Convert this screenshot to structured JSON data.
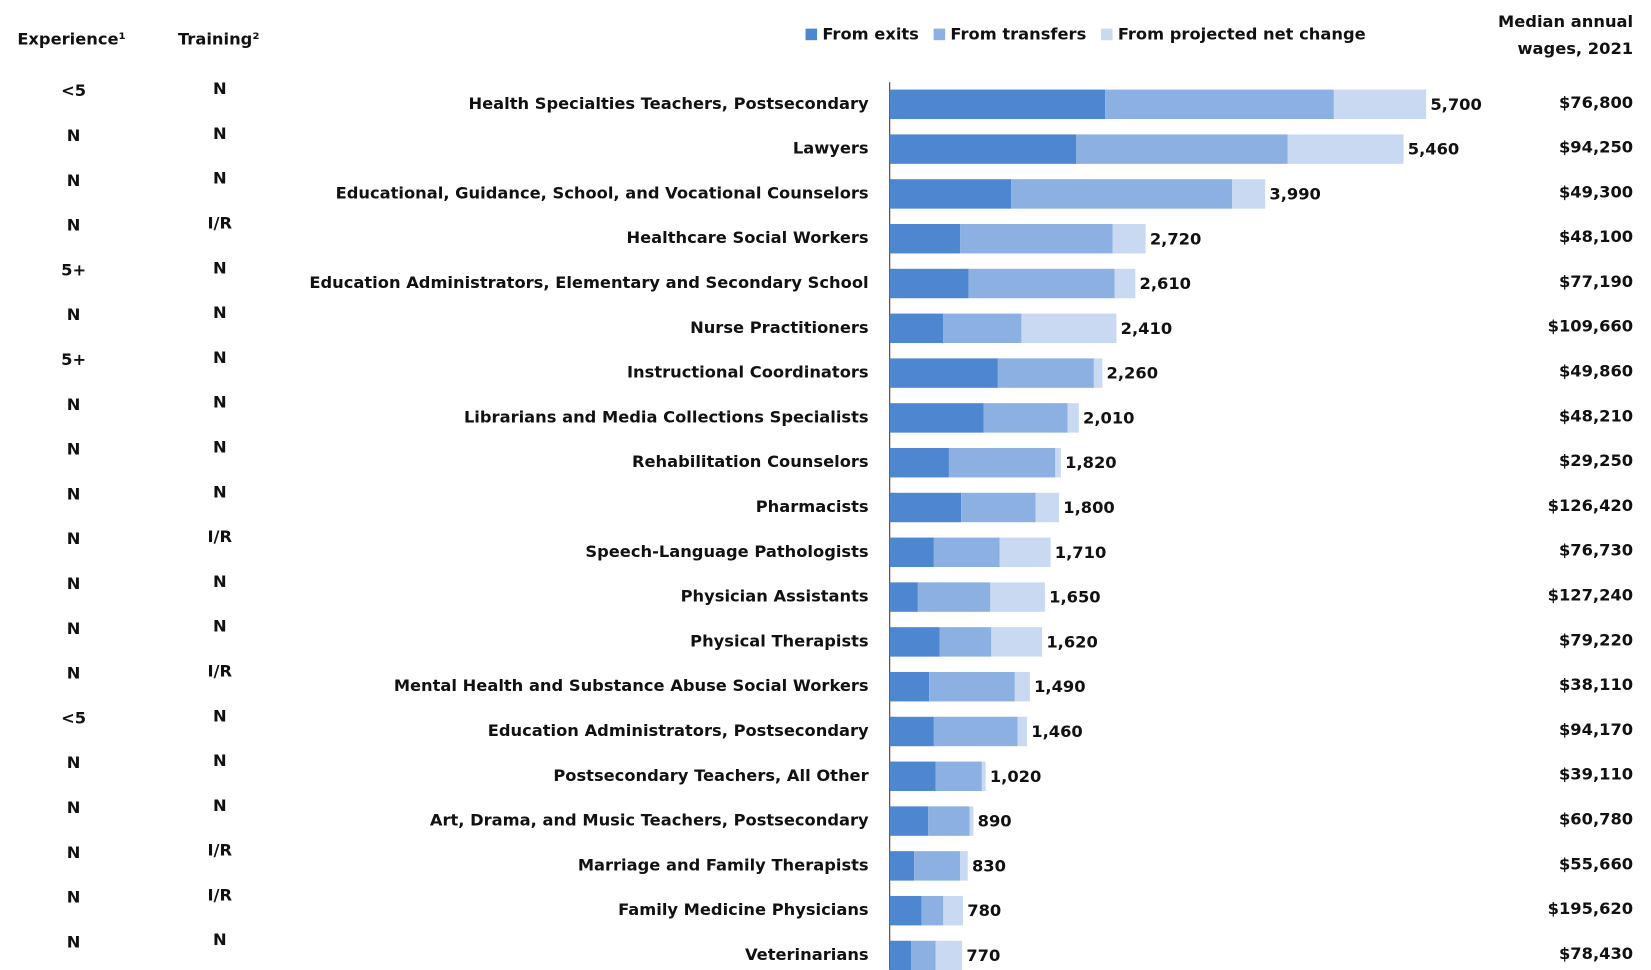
{
  "chart_data": {
    "type": "stacked-bar-horizontal",
    "experience_header": "Experience¹",
    "training_header": "Training²",
    "wage_header": [
      "Median annual",
      "wages, 2021"
    ],
    "categories": [
      "Health Specialties Teachers, Postsecondary",
      "Lawyers",
      "Educational, Guidance, School, and Vocational Counselors",
      "Healthcare Social Workers",
      "Education Administrators, Elementary and Secondary School",
      "Nurse Practitioners",
      "Instructional Coordinators",
      "Librarians and Media Collections Specialists",
      "Rehabilitation Counselors",
      "Pharmacists",
      "Speech-Language Pathologists",
      "Physician Assistants",
      "Physical Therapists",
      "Mental Health and Substance Abuse Social Workers",
      "Education Administrators, Postsecondary",
      "Postsecondary Teachers, All Other",
      "Art, Drama, and Music Teachers, Postsecondary",
      "Marriage and Family Therapists",
      "Family Medicine Physicians",
      "Veterinarians"
    ],
    "experience": [
      "<5",
      "N",
      "N",
      "N",
      "5+",
      "N",
      "5+",
      "N",
      "N",
      "N",
      "N",
      "N",
      "N",
      "N",
      "<5",
      "N",
      "N",
      "N",
      "N",
      "N"
    ],
    "training": [
      "N",
      "N",
      "N",
      "I/R",
      "N",
      "N",
      "N",
      "N",
      "N",
      "N",
      "I/R",
      "N",
      "N",
      "I/R",
      "N",
      "N",
      "N",
      "I/R",
      "I/R",
      "N"
    ],
    "wages": [
      "$76,800",
      "$94,250",
      "$49,300",
      "$48,100",
      "$77,190",
      "$109,660",
      "$49,860",
      "$48,210",
      "$29,250",
      "$126,420",
      "$76,730",
      "$127,240",
      "$79,220",
      "$38,110",
      "$94,170",
      "$39,110",
      "$60,780",
      "$55,660",
      "$195,620",
      "$78,430"
    ],
    "series": [
      {
        "name": "From exits",
        "color": "#4f86d0",
        "values": [
          2290,
          1980,
          1290,
          750,
          840,
          570,
          1150,
          1000,
          630,
          760,
          470,
          300,
          530,
          420,
          470,
          490,
          410,
          260,
          340,
          230
        ]
      },
      {
        "name": "From transfers",
        "color": "#8db0e3",
        "values": [
          2430,
          2250,
          2350,
          1620,
          1550,
          830,
          1020,
          890,
          1130,
          790,
          700,
          770,
          550,
          910,
          890,
          490,
          440,
          490,
          230,
          260
        ]
      },
      {
        "name": "From projected net change",
        "color": "#c9d9f2",
        "values": [
          980,
          1230,
          350,
          350,
          220,
          1010,
          90,
          120,
          60,
          250,
          540,
          580,
          540,
          160,
          100,
          40,
          40,
          80,
          210,
          280
        ]
      }
    ],
    "totals": [
      5700,
      5460,
      3990,
      2720,
      2610,
      2410,
      2260,
      2010,
      1820,
      1800,
      1710,
      1650,
      1620,
      1490,
      1460,
      1020,
      890,
      830,
      780,
      770
    ],
    "value_labels": [
      "5,700",
      "5,460",
      "3,990",
      "2,720",
      "2,610",
      "2,410",
      "2,260",
      "2,010",
      "1,820",
      "1,800",
      "1,710",
      "1,650",
      "1,620",
      "1,490",
      "1,460",
      "1,020",
      "890",
      "830",
      "780",
      "770"
    ],
    "xlim": [
      0,
      6000
    ]
  }
}
